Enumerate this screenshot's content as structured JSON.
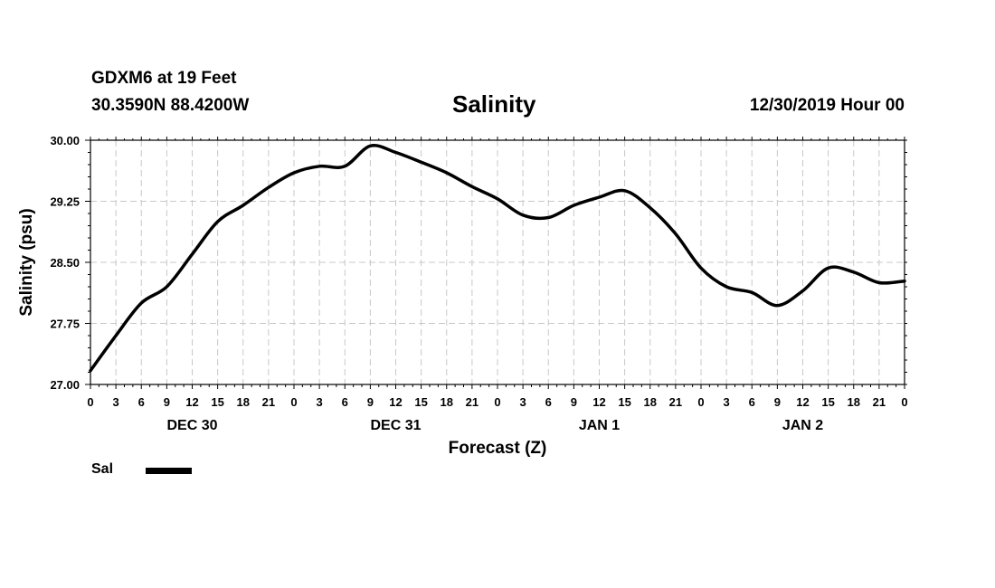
{
  "header": {
    "station": "GDXM6 at 19 Feet",
    "coords": "30.3590N 88.4200W",
    "title": "Salinity",
    "date": "12/30/2019 Hour 00"
  },
  "legend": {
    "label": "Sal"
  },
  "chart_data": {
    "type": "line",
    "title": "Salinity",
    "xlabel": "Forecast (Z)",
    "ylabel": "Salinity (psu)",
    "xlim": [
      0,
      96
    ],
    "ylim": [
      27.0,
      30.0
    ],
    "yticks": [
      "27.00",
      "27.75",
      "28.50",
      "29.25",
      "30.00"
    ],
    "xticks": [
      "0",
      "3",
      "6",
      "9",
      "12",
      "15",
      "18",
      "21",
      "0",
      "3",
      "6",
      "9",
      "12",
      "15",
      "18",
      "21",
      "0",
      "3",
      "6",
      "9",
      "12",
      "15",
      "18",
      "21",
      "0",
      "3",
      "6",
      "9",
      "12",
      "15",
      "18",
      "21",
      "0"
    ],
    "day_labels": [
      {
        "label": "DEC 30",
        "hour": 12
      },
      {
        "label": "DEC 31",
        "hour": 36
      },
      {
        "label": "JAN 1",
        "hour": 60
      },
      {
        "label": "JAN 2",
        "hour": 84
      }
    ],
    "grid": true,
    "legend_position": "bottom-left",
    "series": [
      {
        "name": "Sal",
        "color": "#000000",
        "x": [
          0,
          3,
          6,
          9,
          12,
          15,
          18,
          21,
          24,
          27,
          30,
          33,
          36,
          39,
          42,
          45,
          48,
          51,
          54,
          57,
          60,
          63,
          66,
          69,
          72,
          75,
          78,
          81,
          84,
          87,
          90,
          93,
          96
        ],
        "values": [
          27.17,
          27.6,
          28.0,
          28.2,
          28.6,
          29.0,
          29.2,
          29.42,
          29.6,
          29.68,
          29.68,
          29.93,
          29.85,
          29.73,
          29.6,
          29.43,
          29.28,
          29.08,
          29.05,
          29.2,
          29.3,
          29.38,
          29.17,
          28.85,
          28.43,
          28.2,
          28.13,
          27.97,
          28.15,
          28.43,
          28.38,
          28.25,
          28.27
        ]
      }
    ]
  }
}
